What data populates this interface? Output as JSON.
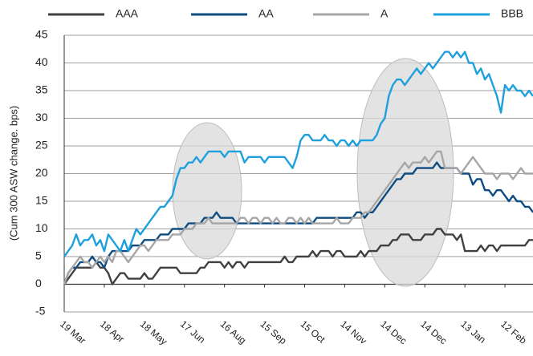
{
  "chart_data": {
    "type": "line",
    "y_label": "(Cum 300 ASW change. bps)",
    "xlim": [
      0,
      117
    ],
    "xticks": [
      {
        "value": 0,
        "label": "19 Mar"
      },
      {
        "value": 10,
        "label": "18 Apr"
      },
      {
        "value": 20,
        "label": "18 May"
      },
      {
        "value": 30,
        "label": "17 Jun"
      },
      {
        "value": 40,
        "label": "16 Aug"
      },
      {
        "value": 50,
        "label": "15 Sep"
      },
      {
        "value": 60,
        "label": "15 Oct"
      },
      {
        "value": 70,
        "label": "14 Nov"
      },
      {
        "value": 80,
        "label": "14 Dec"
      },
      {
        "value": 90,
        "label": "14 Dec"
      },
      {
        "value": 100,
        "label": "13 Jan"
      },
      {
        "value": 110,
        "label": "12 Feb"
      }
    ],
    "ylim": [
      -5,
      45
    ],
    "yticks": [
      -5,
      0,
      5,
      10,
      15,
      20,
      25,
      30,
      35,
      40,
      45
    ],
    "grid": true,
    "legend": "top",
    "series": [
      {
        "name": "AAA",
        "color": "#404040",
        "values": [
          0,
          1,
          2,
          3,
          3,
          3,
          3,
          3,
          4,
          3,
          3,
          2,
          0,
          1,
          2,
          2,
          1,
          1,
          1,
          1,
          2,
          1,
          1,
          2,
          3,
          3,
          3,
          3,
          3,
          2,
          2,
          2,
          2,
          2,
          3,
          3,
          4,
          4,
          4,
          4,
          3,
          4,
          3,
          4,
          4,
          3,
          4,
          4,
          4,
          4,
          4,
          4,
          4,
          4,
          4,
          5,
          4,
          4,
          5,
          5,
          5,
          5,
          6,
          5,
          6,
          6,
          6,
          5,
          6,
          6,
          5,
          5,
          5,
          5,
          6,
          5,
          6,
          6,
          6,
          7,
          7,
          7,
          8,
          8,
          9,
          9,
          9,
          8,
          8,
          8,
          9,
          9,
          9,
          10,
          10,
          9,
          9,
          9,
          8,
          9,
          6,
          6,
          6,
          6,
          7,
          6,
          7,
          7,
          6,
          7,
          7,
          7,
          7,
          7,
          7,
          7,
          8,
          8
        ]
      },
      {
        "name": "AA",
        "color": "#0f4c81",
        "values": [
          0,
          2,
          3,
          3,
          4,
          4,
          4,
          5,
          4,
          4,
          3,
          5,
          6,
          6,
          6,
          6,
          6,
          7,
          7,
          7,
          8,
          8,
          8,
          8,
          9,
          9,
          9,
          10,
          10,
          10,
          10,
          11,
          11,
          11,
          11,
          12,
          12,
          12,
          13,
          12,
          12,
          12,
          12,
          11,
          11,
          11,
          11,
          11,
          11,
          11,
          11,
          11,
          11,
          11,
          11,
          11,
          11,
          11,
          11,
          11,
          11,
          11,
          11,
          12,
          12,
          12,
          12,
          12,
          12,
          12,
          12,
          12,
          12,
          13,
          13,
          12,
          13,
          13,
          14,
          15,
          16,
          17,
          18,
          19,
          19,
          20,
          20,
          20,
          21,
          21,
          21,
          21,
          21,
          22,
          21,
          21,
          21,
          21,
          21,
          20,
          20,
          20,
          18,
          19,
          19,
          17,
          17,
          16,
          17,
          17,
          16,
          15,
          16,
          15,
          15,
          14,
          14,
          13
        ]
      },
      {
        "name": "A",
        "color": "#a6a6a6",
        "values": [
          0,
          2,
          3,
          4,
          5,
          4,
          4,
          3,
          4,
          5,
          4,
          5,
          4,
          6,
          6,
          5,
          4,
          5,
          6,
          7,
          7,
          6,
          7,
          8,
          8,
          8,
          8,
          9,
          9,
          9,
          10,
          10,
          10,
          11,
          11,
          11,
          12,
          11,
          11,
          11,
          11,
          11,
          11,
          11,
          12,
          12,
          11,
          12,
          12,
          11,
          12,
          12,
          11,
          12,
          11,
          11,
          12,
          12,
          11,
          12,
          11,
          12,
          11,
          11,
          11,
          11,
          11,
          11,
          12,
          11,
          11,
          11,
          12,
          12,
          12,
          13,
          13,
          14,
          15,
          16,
          17,
          18,
          19,
          20,
          21,
          22,
          21,
          22,
          22,
          22,
          23,
          22,
          23,
          24,
          24,
          21,
          21,
          21,
          21,
          20,
          21,
          22,
          23,
          22,
          21,
          20,
          20,
          20,
          19,
          20,
          20,
          20,
          19,
          20,
          21,
          20,
          20,
          20
        ]
      },
      {
        "name": "BBB",
        "color": "#1ea0dc",
        "values": [
          5,
          6,
          7,
          9,
          7,
          8,
          8,
          9,
          7,
          8,
          6,
          9,
          8,
          7,
          6,
          8,
          6,
          8,
          10,
          9,
          10,
          11,
          12,
          13,
          14,
          14,
          15,
          16,
          19,
          21,
          21,
          22,
          22,
          23,
          22,
          23,
          24,
          24,
          24,
          24,
          23,
          24,
          24,
          24,
          24,
          22,
          23,
          23,
          23,
          23,
          22,
          23,
          23,
          23,
          23,
          23,
          22,
          21,
          23,
          26,
          27,
          27,
          26,
          26,
          26,
          27,
          26,
          26,
          25,
          26,
          26,
          25,
          26,
          25,
          26,
          26,
          26,
          26,
          27,
          29,
          30,
          34,
          36,
          37,
          37,
          36,
          37,
          38,
          39,
          38,
          39,
          40,
          39,
          40,
          41,
          42,
          42,
          41,
          42,
          41,
          42,
          40,
          40,
          38,
          39,
          37,
          38,
          36,
          34,
          31,
          36,
          35,
          36,
          35,
          35,
          34,
          35,
          34
        ]
      }
    ]
  }
}
